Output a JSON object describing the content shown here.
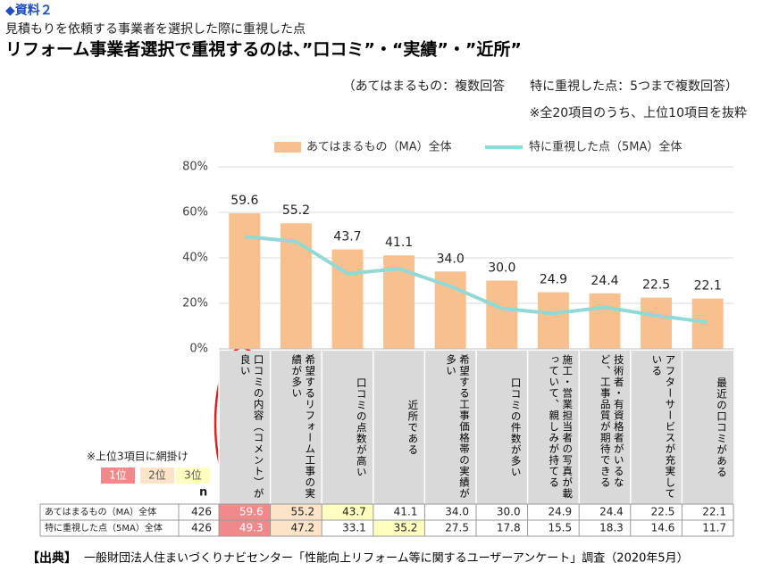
{
  "chart_data": {
    "type": "bar_line",
    "badge": "◆資料２",
    "subtitle": "見積もりを依頼する事業者を選択した際に重視した点",
    "title": "リフォーム事業者選択で重視するのは、”口コミ”・“実績”・”近所”",
    "notes": [
      "（あてはまるもの：複数回答　　特に重視した点：5つまで複数回答）",
      "※全20項目のうち、上位10項目を抜粋"
    ],
    "categories": [
      "口コミの内容（コメント）が良い",
      "希望するリフォーム工事の実績が多い",
      "口コミの点数が高い",
      "近所である",
      "希望する工事価格帯の実績が多い",
      "口コミの件数が多い",
      "施工・営業担当者の写真が載っていて、親しみが持てる",
      "技術者・有資格者がいるなど、工事品質が期待できる",
      "アフターサービスが充実している",
      "最近の口コミがある"
    ],
    "series": [
      {
        "name": "あてはまるもの（MA）全体",
        "type": "bar",
        "color": "#f9c08f",
        "n": 426,
        "values": [
          59.6,
          55.2,
          43.7,
          41.1,
          34.0,
          30.0,
          24.9,
          24.4,
          22.5,
          22.1
        ],
        "value_labels": [
          "59.6",
          "55.2",
          "43.7",
          "41.1",
          "34.0",
          "30.0",
          "24.9",
          "24.4",
          "22.5",
          "22.1"
        ]
      },
      {
        "name": "特に重視した点（5MA）全体",
        "type": "line",
        "color": "#92d8d4",
        "n": 426,
        "values": [
          49.3,
          47.2,
          33.1,
          35.2,
          27.5,
          17.8,
          15.5,
          18.3,
          14.6,
          11.7
        ],
        "value_labels": [
          "49.3",
          "47.2",
          "33.1",
          "35.2",
          "27.5",
          "17.8",
          "15.5",
          "18.3",
          "14.6",
          "11.7"
        ]
      }
    ],
    "ylim": [
      0,
      80
    ],
    "yticks": [
      {
        "value": 0,
        "label": "0%"
      },
      {
        "value": 20,
        "label": "20%"
      },
      {
        "value": 40,
        "label": "40%"
      },
      {
        "value": 60,
        "label": "60%"
      },
      {
        "value": 80,
        "label": "80%"
      }
    ],
    "rank_note": "※上位3項目に網掛け",
    "ranks": [
      {
        "label": "1位",
        "color": "#f08a8a"
      },
      {
        "label": "2位",
        "color": "#fde3c8"
      },
      {
        "label": "3位",
        "color": "#ffffc0"
      }
    ],
    "n_header": "n",
    "source_tag": "【出典】",
    "source": "一般財団法人住まいづくりナビセンター「性能向上リフォーム等に関するユーザーアンケート」調査（2020年5月）"
  }
}
